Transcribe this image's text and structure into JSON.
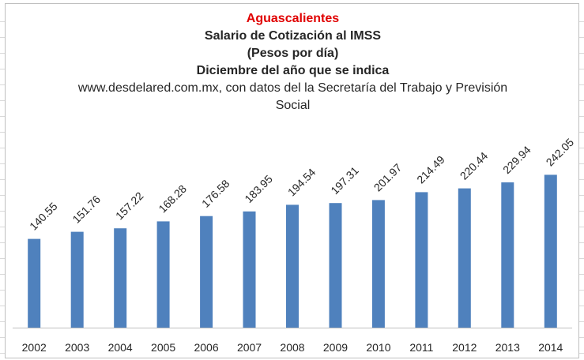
{
  "chart_data": {
    "type": "bar",
    "title": "Aguascalientes",
    "subtitle_lines": [
      "Salario de Cotización al IMSS",
      "(Pesos por día)",
      "Diciembre del año que se indica"
    ],
    "source_lines": [
      "www.desdelared.com.mx, con datos del la Secretaría del Trabajo y Previsión",
      "Social"
    ],
    "categories": [
      "2002",
      "2003",
      "2004",
      "2005",
      "2006",
      "2007",
      "2008",
      "2009",
      "2010",
      "2011",
      "2012",
      "2013",
      "2014"
    ],
    "values": [
      140.55,
      151.76,
      157.22,
      168.28,
      176.58,
      183.95,
      194.54,
      197.31,
      201.97,
      214.49,
      220.44,
      229.94,
      242.05
    ],
    "value_labels": [
      "140.55",
      "151.76",
      "157.22",
      "168.28",
      "176.58",
      "183.95",
      "194.54",
      "197.31",
      "201.97",
      "214.49",
      "220.44",
      "229.94",
      "242.05"
    ],
    "ylim": [
      0,
      300
    ],
    "grid": false,
    "legend": "none",
    "colors": {
      "bar": "#4f81bd",
      "title": "#e00000",
      "text": "#262626",
      "axis": "#bfbfbf"
    }
  }
}
